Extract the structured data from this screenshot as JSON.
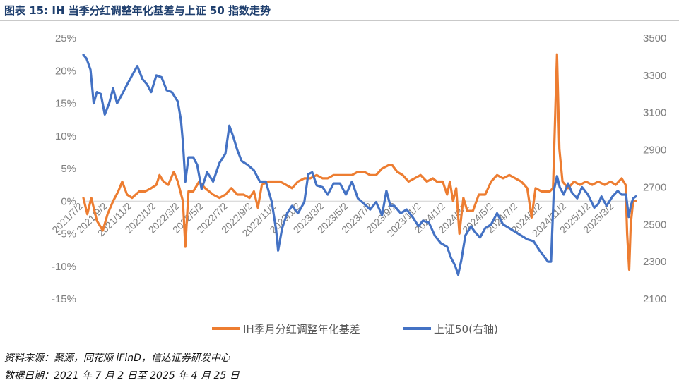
{
  "header": {
    "title": "图表 15:  IH 当季分红调整年化基差与上证 50 指数走势"
  },
  "footer": {
    "source": "资料来源：聚源，同花顺 iFinD，信达证券研发中心",
    "date_range": "数据日期：2021 年 7 月 2 日至 2025 年 4 月 25 日"
  },
  "chart_data": {
    "type": "line",
    "x_tick_labels": [
      "2021/7/2",
      "2021/9/2",
      "2021/11/2",
      "2022/1/2",
      "2022/3/2",
      "2022/5/2",
      "2022/7/2",
      "2022/9/2",
      "2022/11/2",
      "2023/1/2",
      "2023/3/2",
      "2023/5/2",
      "2023/7/2",
      "2023/9/2",
      "2023/11/2",
      "2024/1/2",
      "2024/3/2",
      "2024/5/2",
      "2024/7/2",
      "2024/9/2",
      "2024/11/2",
      "2025/1/2",
      "2025/3/2"
    ],
    "x_range": [
      "2021-07-02",
      "2025-04-25"
    ],
    "y_left": {
      "ticks": [
        "25%",
        "20%",
        "15%",
        "10%",
        "5%",
        "0%",
        "-5%",
        "-10%",
        "-15%"
      ],
      "min": -15,
      "max": 25
    },
    "y_right": {
      "ticks": [
        "3500",
        "3300",
        "3100",
        "2900",
        "2700",
        "2500",
        "2300",
        "2100"
      ],
      "min": 2100,
      "max": 3500
    },
    "grid": false,
    "legend_position": "bottom",
    "series": [
      {
        "name": "IH季月分红调整年化基差",
        "axis": "left",
        "color": "#ed7d31",
        "points": [
          [
            "2021-07-02",
            0.5
          ],
          [
            "2021-07-12",
            -2.0
          ],
          [
            "2021-07-22",
            0.5
          ],
          [
            "2021-08-05",
            -3.0
          ],
          [
            "2021-08-20",
            -4.5
          ],
          [
            "2021-09-01",
            -2.0
          ],
          [
            "2021-09-15",
            0.0
          ],
          [
            "2021-09-28",
            1.5
          ],
          [
            "2021-10-08",
            3.0
          ],
          [
            "2021-10-20",
            1.0
          ],
          [
            "2021-11-02",
            0.5
          ],
          [
            "2021-11-20",
            1.5
          ],
          [
            "2021-12-05",
            1.5
          ],
          [
            "2021-12-20",
            2.0
          ],
          [
            "2022-01-02",
            2.5
          ],
          [
            "2022-01-10",
            4.0
          ],
          [
            "2022-01-20",
            3.0
          ],
          [
            "2022-02-01",
            2.5
          ],
          [
            "2022-02-15",
            4.5
          ],
          [
            "2022-02-25",
            3.0
          ],
          [
            "2022-03-10",
            0.0
          ],
          [
            "2022-03-16",
            -7.0
          ],
          [
            "2022-03-24",
            1.5
          ],
          [
            "2022-04-05",
            1.5
          ],
          [
            "2022-04-20",
            3.0
          ],
          [
            "2022-05-05",
            2.0
          ],
          [
            "2022-05-25",
            1.0
          ],
          [
            "2022-06-10",
            0.5
          ],
          [
            "2022-06-25",
            1.0
          ],
          [
            "2022-07-10",
            2.0
          ],
          [
            "2022-07-25",
            1.0
          ],
          [
            "2022-08-10",
            1.0
          ],
          [
            "2022-08-25",
            0.5
          ],
          [
            "2022-09-05",
            1.5
          ],
          [
            "2022-09-15",
            -1.0
          ],
          [
            "2022-09-25",
            2.5
          ],
          [
            "2022-10-10",
            3.0
          ],
          [
            "2022-10-25",
            3.0
          ],
          [
            "2022-11-10",
            3.0
          ],
          [
            "2022-11-25",
            2.5
          ],
          [
            "2022-12-10",
            2.0
          ],
          [
            "2022-12-25",
            3.0
          ],
          [
            "2023-01-10",
            3.5
          ],
          [
            "2023-01-25",
            3.5
          ],
          [
            "2023-02-10",
            4.0
          ],
          [
            "2023-02-25",
            3.5
          ],
          [
            "2023-03-10",
            3.5
          ],
          [
            "2023-03-25",
            4.0
          ],
          [
            "2023-04-10",
            4.0
          ],
          [
            "2023-04-25",
            4.0
          ],
          [
            "2023-05-10",
            4.0
          ],
          [
            "2023-05-25",
            4.5
          ],
          [
            "2023-06-10",
            4.5
          ],
          [
            "2023-06-25",
            4.0
          ],
          [
            "2023-07-10",
            4.0
          ],
          [
            "2023-07-25",
            5.0
          ],
          [
            "2023-08-10",
            5.5
          ],
          [
            "2023-08-20",
            5.5
          ],
          [
            "2023-09-01",
            4.5
          ],
          [
            "2023-09-15",
            4.0
          ],
          [
            "2023-09-30",
            3.0
          ],
          [
            "2023-10-15",
            3.5
          ],
          [
            "2023-10-30",
            4.0
          ],
          [
            "2023-11-15",
            3.0
          ],
          [
            "2023-11-30",
            3.5
          ],
          [
            "2023-12-10",
            3.0
          ],
          [
            "2023-12-25",
            3.0
          ],
          [
            "2024-01-05",
            1.0
          ],
          [
            "2024-01-12",
            3.0
          ],
          [
            "2024-01-20",
            0.0
          ],
          [
            "2024-01-28",
            2.0
          ],
          [
            "2024-02-05",
            -5.0
          ],
          [
            "2024-02-15",
            0.5
          ],
          [
            "2024-02-25",
            -1.5
          ],
          [
            "2024-03-10",
            -1.5
          ],
          [
            "2024-03-25",
            1.0
          ],
          [
            "2024-04-10",
            1.0
          ],
          [
            "2024-04-25",
            3.0
          ],
          [
            "2024-05-10",
            4.0
          ],
          [
            "2024-05-25",
            3.5
          ],
          [
            "2024-06-10",
            4.0
          ],
          [
            "2024-06-25",
            3.5
          ],
          [
            "2024-07-10",
            3.0
          ],
          [
            "2024-07-25",
            2.0
          ],
          [
            "2024-08-05",
            -2.5
          ],
          [
            "2024-08-15",
            2.0
          ],
          [
            "2024-08-30",
            1.5
          ],
          [
            "2024-09-10",
            1.5
          ],
          [
            "2024-09-20",
            1.5
          ],
          [
            "2024-09-28",
            2.0
          ],
          [
            "2024-10-08",
            22.5
          ],
          [
            "2024-10-14",
            8.0
          ],
          [
            "2024-10-22",
            3.0
          ],
          [
            "2024-11-05",
            2.0
          ],
          [
            "2024-11-20",
            3.0
          ],
          [
            "2024-12-05",
            2.5
          ],
          [
            "2024-12-20",
            3.0
          ],
          [
            "2025-01-05",
            2.5
          ],
          [
            "2025-01-20",
            3.0
          ],
          [
            "2025-02-05",
            2.5
          ],
          [
            "2025-02-20",
            3.0
          ],
          [
            "2025-03-05",
            2.5
          ],
          [
            "2025-03-20",
            3.5
          ],
          [
            "2025-03-30",
            2.5
          ],
          [
            "2025-04-03",
            -5.0
          ],
          [
            "2025-04-08",
            -10.5
          ],
          [
            "2025-04-12",
            -3.5
          ],
          [
            "2025-04-18",
            0.0
          ],
          [
            "2025-04-25",
            0.0
          ]
        ]
      },
      {
        "name": "上证50(右轴)",
        "axis": "right",
        "color": "#4472c4",
        "points": [
          [
            "2021-07-02",
            3410
          ],
          [
            "2021-07-10",
            3390
          ],
          [
            "2021-07-20",
            3330
          ],
          [
            "2021-07-28",
            3150
          ],
          [
            "2021-08-05",
            3210
          ],
          [
            "2021-08-15",
            3200
          ],
          [
            "2021-08-25",
            3090
          ],
          [
            "2021-09-05",
            3150
          ],
          [
            "2021-09-15",
            3230
          ],
          [
            "2021-09-25",
            3150
          ],
          [
            "2021-10-08",
            3200
          ],
          [
            "2021-10-20",
            3250
          ],
          [
            "2021-11-02",
            3300
          ],
          [
            "2021-11-15",
            3350
          ],
          [
            "2021-11-28",
            3280
          ],
          [
            "2021-12-10",
            3250
          ],
          [
            "2021-12-20",
            3210
          ],
          [
            "2022-01-02",
            3300
          ],
          [
            "2022-01-15",
            3290
          ],
          [
            "2022-01-28",
            3220
          ],
          [
            "2022-02-10",
            3210
          ],
          [
            "2022-02-25",
            3160
          ],
          [
            "2022-03-05",
            3060
          ],
          [
            "2022-03-10",
            2940
          ],
          [
            "2022-03-16",
            2730
          ],
          [
            "2022-03-24",
            2860
          ],
          [
            "2022-04-05",
            2860
          ],
          [
            "2022-04-15",
            2820
          ],
          [
            "2022-04-26",
            2690
          ],
          [
            "2022-05-10",
            2780
          ],
          [
            "2022-05-25",
            2730
          ],
          [
            "2022-06-10",
            2830
          ],
          [
            "2022-06-25",
            2880
          ],
          [
            "2022-07-05",
            3030
          ],
          [
            "2022-07-15",
            2970
          ],
          [
            "2022-07-25",
            2900
          ],
          [
            "2022-08-05",
            2840
          ],
          [
            "2022-08-20",
            2820
          ],
          [
            "2022-09-05",
            2790
          ],
          [
            "2022-09-20",
            2730
          ],
          [
            "2022-10-05",
            2730
          ],
          [
            "2022-10-20",
            2620
          ],
          [
            "2022-10-31",
            2470
          ],
          [
            "2022-11-05",
            2360
          ],
          [
            "2022-11-15",
            2480
          ],
          [
            "2022-11-28",
            2560
          ],
          [
            "2022-12-10",
            2600
          ],
          [
            "2022-12-25",
            2560
          ],
          [
            "2023-01-10",
            2620
          ],
          [
            "2023-01-20",
            2770
          ],
          [
            "2023-01-30",
            2780
          ],
          [
            "2023-02-10",
            2710
          ],
          [
            "2023-02-25",
            2700
          ],
          [
            "2023-03-10",
            2660
          ],
          [
            "2023-03-25",
            2720
          ],
          [
            "2023-04-10",
            2720
          ],
          [
            "2023-04-25",
            2660
          ],
          [
            "2023-05-10",
            2730
          ],
          [
            "2023-05-25",
            2640
          ],
          [
            "2023-06-10",
            2610
          ],
          [
            "2023-06-25",
            2580
          ],
          [
            "2023-07-10",
            2620
          ],
          [
            "2023-07-25",
            2550
          ],
          [
            "2023-08-05",
            2680
          ],
          [
            "2023-08-15",
            2600
          ],
          [
            "2023-08-25",
            2600
          ],
          [
            "2023-09-10",
            2560
          ],
          [
            "2023-09-25",
            2580
          ],
          [
            "2023-10-10",
            2540
          ],
          [
            "2023-10-25",
            2490
          ],
          [
            "2023-11-05",
            2520
          ],
          [
            "2023-11-20",
            2510
          ],
          [
            "2023-12-05",
            2440
          ],
          [
            "2023-12-20",
            2400
          ],
          [
            "2024-01-05",
            2380
          ],
          [
            "2024-01-15",
            2320
          ],
          [
            "2024-01-25",
            2280
          ],
          [
            "2024-02-02",
            2230
          ],
          [
            "2024-02-10",
            2310
          ],
          [
            "2024-02-20",
            2440
          ],
          [
            "2024-03-05",
            2490
          ],
          [
            "2024-03-15",
            2460
          ],
          [
            "2024-03-28",
            2430
          ],
          [
            "2024-04-10",
            2480
          ],
          [
            "2024-04-25",
            2500
          ],
          [
            "2024-05-10",
            2560
          ],
          [
            "2024-05-25",
            2500
          ],
          [
            "2024-06-10",
            2480
          ],
          [
            "2024-06-25",
            2460
          ],
          [
            "2024-07-10",
            2440
          ],
          [
            "2024-07-25",
            2420
          ],
          [
            "2024-08-10",
            2410
          ],
          [
            "2024-08-25",
            2360
          ],
          [
            "2024-09-05",
            2330
          ],
          [
            "2024-09-15",
            2300
          ],
          [
            "2024-09-23",
            2300
          ],
          [
            "2024-09-30",
            2680
          ],
          [
            "2024-10-08",
            2760
          ],
          [
            "2024-10-15",
            2700
          ],
          [
            "2024-10-25",
            2660
          ],
          [
            "2024-11-05",
            2720
          ],
          [
            "2024-11-15",
            2670
          ],
          [
            "2024-11-28",
            2640
          ],
          [
            "2024-12-10",
            2700
          ],
          [
            "2024-12-25",
            2660
          ],
          [
            "2025-01-10",
            2590
          ],
          [
            "2025-01-20",
            2610
          ],
          [
            "2025-01-28",
            2650
          ],
          [
            "2025-02-10",
            2600
          ],
          [
            "2025-02-25",
            2650
          ],
          [
            "2025-03-10",
            2680
          ],
          [
            "2025-03-20",
            2660
          ],
          [
            "2025-03-31",
            2660
          ],
          [
            "2025-04-07",
            2540
          ],
          [
            "2025-04-12",
            2600
          ],
          [
            "2025-04-18",
            2640
          ],
          [
            "2025-04-25",
            2650
          ]
        ]
      }
    ]
  }
}
